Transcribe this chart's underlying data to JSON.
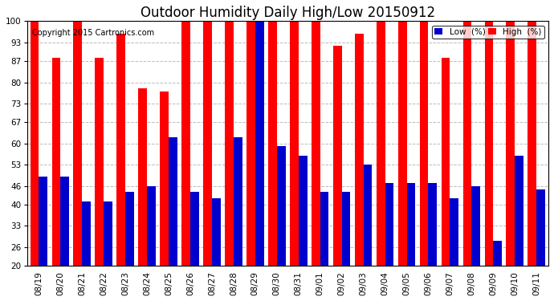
{
  "title": "Outdoor Humidity Daily High/Low 20150912",
  "copyright": "Copyright 2015 Cartronics.com",
  "dates": [
    "08/19",
    "08/20",
    "08/21",
    "08/22",
    "08/23",
    "08/24",
    "08/25",
    "08/26",
    "08/27",
    "08/28",
    "08/29",
    "08/30",
    "08/31",
    "09/01",
    "09/02",
    "09/03",
    "09/04",
    "09/05",
    "09/06",
    "09/07",
    "09/08",
    "09/09",
    "09/10",
    "09/11"
  ],
  "high": [
    100,
    88,
    100,
    88,
    96,
    78,
    77,
    100,
    100,
    100,
    100,
    100,
    100,
    100,
    92,
    96,
    100,
    100,
    100,
    88,
    100,
    100,
    100,
    100
  ],
  "low": [
    49,
    49,
    41,
    41,
    44,
    46,
    62,
    44,
    42,
    62,
    100,
    59,
    56,
    44,
    44,
    53,
    47,
    47,
    47,
    42,
    46,
    28,
    56,
    45
  ],
  "ylim_min": 20,
  "ylim_max": 100,
  "yticks": [
    20,
    26,
    33,
    40,
    46,
    53,
    60,
    67,
    73,
    80,
    87,
    93,
    100
  ],
  "color_high": "#ff0000",
  "color_low": "#0000cc",
  "bg_color": "#ffffff",
  "grid_color": "#bbbbbb",
  "title_fontsize": 12,
  "tick_fontsize": 7.5,
  "copyright_fontsize": 7,
  "legend_label_low": "Low  (%)",
  "legend_label_high": "High  (%)"
}
